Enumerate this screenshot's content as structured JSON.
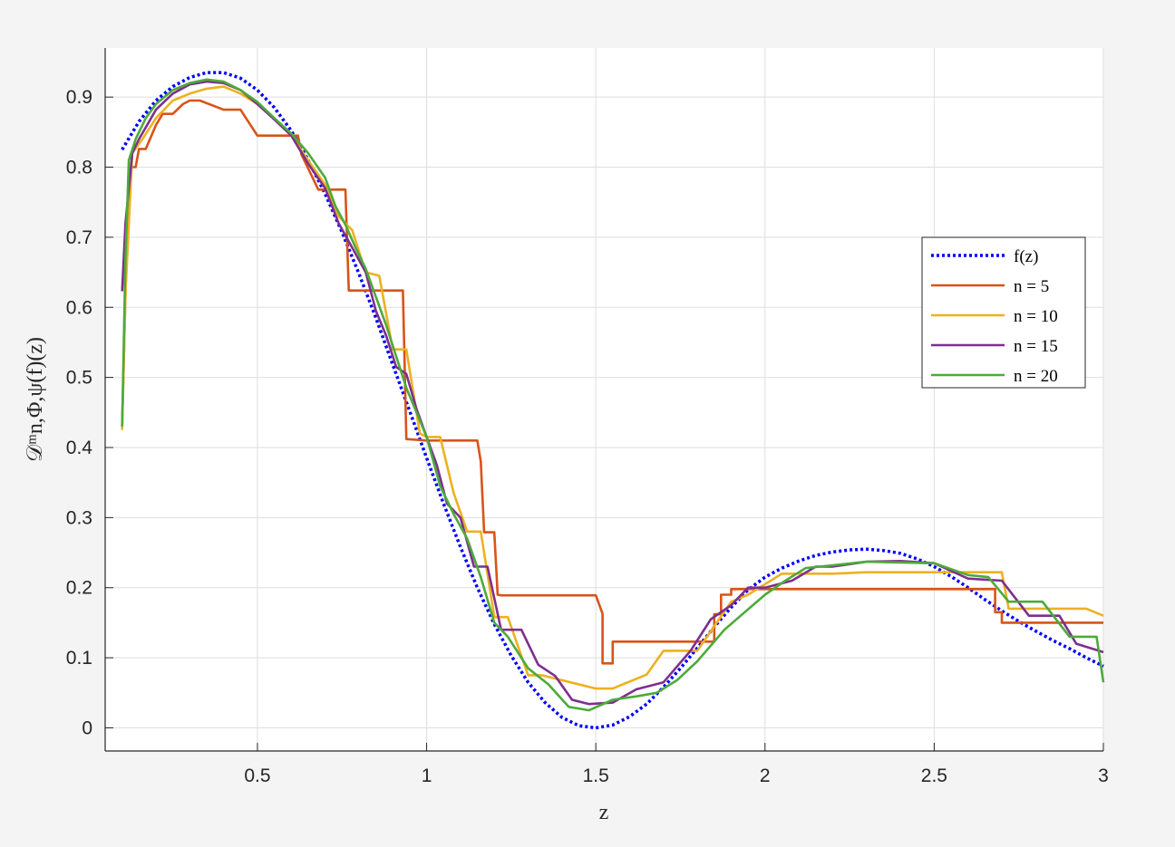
{
  "chart_data": {
    "type": "line",
    "title": "",
    "xlabel": "z",
    "ylabel": "𝒟ᵐn,Φ,ψ(f)(z)",
    "xlim": [
      0.05,
      3
    ],
    "ylim": [
      -0.033,
      0.97
    ],
    "grid": true,
    "legend_position": "right",
    "xticks": [
      0.5,
      1,
      1.5,
      2,
      2.5,
      3
    ],
    "xtick_labels": [
      "0.5",
      "1",
      "1.5",
      "2",
      "2.5",
      "3"
    ],
    "yticks": [
      0,
      0.1,
      0.2,
      0.3,
      0.4,
      0.5,
      0.6,
      0.7,
      0.8,
      0.9
    ],
    "ytick_labels": [
      "0",
      "0.1",
      "0.2",
      "0.3",
      "0.4",
      "0.5",
      "0.6",
      "0.7",
      "0.8",
      "0.9"
    ],
    "series": [
      {
        "name": "f(z)",
        "color": "#0000ff",
        "style": "dotted",
        "x": [
          0.1,
          0.15,
          0.2,
          0.25,
          0.3,
          0.35,
          0.4,
          0.45,
          0.5,
          0.55,
          0.6,
          0.65,
          0.7,
          0.75,
          0.8,
          0.85,
          0.9,
          0.95,
          1.0,
          1.05,
          1.1,
          1.15,
          1.2,
          1.25,
          1.3,
          1.35,
          1.4,
          1.45,
          1.5,
          1.55,
          1.6,
          1.65,
          1.7,
          1.75,
          1.8,
          1.85,
          1.9,
          1.95,
          2.0,
          2.05,
          2.1,
          2.15,
          2.2,
          2.25,
          2.3,
          2.35,
          2.4,
          2.45,
          2.5,
          2.55,
          2.6,
          2.65,
          2.7,
          2.75,
          2.8,
          2.85,
          2.9,
          2.95,
          3.0
        ],
        "y": [
          0.825,
          0.865,
          0.895,
          0.915,
          0.928,
          0.935,
          0.935,
          0.927,
          0.91,
          0.885,
          0.852,
          0.81,
          0.762,
          0.707,
          0.648,
          0.585,
          0.518,
          0.452,
          0.385,
          0.32,
          0.258,
          0.2,
          0.148,
          0.103,
          0.065,
          0.036,
          0.015,
          0.003,
          0.0,
          0.004,
          0.016,
          0.034,
          0.058,
          0.085,
          0.114,
          0.144,
          0.172,
          0.197,
          0.215,
          0.228,
          0.238,
          0.246,
          0.251,
          0.254,
          0.255,
          0.253,
          0.249,
          0.241,
          0.23,
          0.216,
          0.2,
          0.183,
          0.167,
          0.152,
          0.138,
          0.125,
          0.113,
          0.1,
          0.088
        ]
      },
      {
        "name": "n = 5",
        "color": "#d95319",
        "style": "solid",
        "x": [
          0.1,
          0.11,
          0.12,
          0.14,
          0.15,
          0.17,
          0.2,
          0.22,
          0.25,
          0.28,
          0.3,
          0.33,
          0.4,
          0.45,
          0.5,
          0.62,
          0.63,
          0.68,
          0.76,
          0.77,
          0.83,
          0.93,
          0.94,
          1.0,
          1.15,
          1.16,
          1.17,
          1.2,
          1.21,
          1.22,
          1.5,
          1.52,
          1.52,
          1.55,
          1.55,
          1.85,
          1.85,
          1.87,
          1.87,
          1.9,
          1.9,
          2.68,
          2.68,
          2.7,
          2.7,
          3.0
        ],
        "y": [
          0.43,
          0.62,
          0.8,
          0.8,
          0.826,
          0.826,
          0.86,
          0.876,
          0.876,
          0.89,
          0.895,
          0.895,
          0.882,
          0.882,
          0.845,
          0.845,
          0.818,
          0.768,
          0.768,
          0.624,
          0.624,
          0.624,
          0.412,
          0.41,
          0.41,
          0.38,
          0.279,
          0.279,
          0.19,
          0.189,
          0.189,
          0.163,
          0.092,
          0.092,
          0.123,
          0.123,
          0.162,
          0.162,
          0.19,
          0.19,
          0.198,
          0.198,
          0.165,
          0.165,
          0.15,
          0.15
        ]
      },
      {
        "name": "n = 10",
        "color": "#edb120",
        "style": "solid",
        "x": [
          0.1,
          0.11,
          0.13,
          0.16,
          0.2,
          0.25,
          0.3,
          0.35,
          0.4,
          0.45,
          0.5,
          0.55,
          0.6,
          0.65,
          0.7,
          0.74,
          0.78,
          0.82,
          0.86,
          0.9,
          0.94,
          0.98,
          1.0,
          1.04,
          1.08,
          1.12,
          1.16,
          1.2,
          1.24,
          1.3,
          1.34,
          1.5,
          1.55,
          1.65,
          1.7,
          1.8,
          1.85,
          1.9,
          1.95,
          2.05,
          2.1,
          2.2,
          2.3,
          2.45,
          2.7,
          2.72,
          2.95,
          3.0
        ],
        "y": [
          0.425,
          0.62,
          0.82,
          0.84,
          0.87,
          0.895,
          0.905,
          0.912,
          0.915,
          0.905,
          0.89,
          0.87,
          0.845,
          0.81,
          0.775,
          0.73,
          0.71,
          0.65,
          0.645,
          0.54,
          0.54,
          0.42,
          0.415,
          0.415,
          0.335,
          0.28,
          0.28,
          0.158,
          0.158,
          0.075,
          0.075,
          0.056,
          0.056,
          0.076,
          0.11,
          0.11,
          0.145,
          0.18,
          0.19,
          0.22,
          0.22,
          0.22,
          0.222,
          0.222,
          0.222,
          0.17,
          0.17,
          0.16
        ]
      },
      {
        "name": "n = 15",
        "color": "#7e2f8e",
        "style": "solid",
        "x": [
          0.1,
          0.11,
          0.13,
          0.15,
          0.18,
          0.2,
          0.25,
          0.3,
          0.35,
          0.4,
          0.45,
          0.5,
          0.55,
          0.6,
          0.65,
          0.7,
          0.74,
          0.78,
          0.82,
          0.85,
          0.88,
          0.91,
          0.94,
          0.97,
          1.0,
          1.03,
          1.06,
          1.1,
          1.14,
          1.18,
          1.22,
          1.28,
          1.33,
          1.38,
          1.43,
          1.48,
          1.55,
          1.62,
          1.7,
          1.78,
          1.84,
          1.9,
          1.95,
          2.0,
          2.08,
          2.15,
          2.2,
          2.3,
          2.4,
          2.5,
          2.6,
          2.7,
          2.78,
          2.87,
          2.92,
          3.0
        ],
        "y": [
          0.623,
          0.72,
          0.82,
          0.84,
          0.865,
          0.882,
          0.905,
          0.918,
          0.922,
          0.92,
          0.91,
          0.89,
          0.868,
          0.845,
          0.805,
          0.77,
          0.72,
          0.685,
          0.65,
          0.595,
          0.56,
          0.515,
          0.505,
          0.455,
          0.415,
          0.375,
          0.32,
          0.3,
          0.23,
          0.23,
          0.14,
          0.14,
          0.09,
          0.074,
          0.04,
          0.034,
          0.036,
          0.055,
          0.065,
          0.11,
          0.155,
          0.175,
          0.2,
          0.2,
          0.21,
          0.23,
          0.23,
          0.237,
          0.238,
          0.235,
          0.213,
          0.21,
          0.16,
          0.16,
          0.12,
          0.108
        ]
      },
      {
        "name": "n = 20",
        "color": "#4daa3b",
        "style": "solid",
        "x": [
          0.1,
          0.11,
          0.12,
          0.14,
          0.17,
          0.2,
          0.25,
          0.3,
          0.35,
          0.4,
          0.45,
          0.5,
          0.55,
          0.6,
          0.65,
          0.7,
          0.73,
          0.76,
          0.79,
          0.82,
          0.85,
          0.88,
          0.91,
          0.94,
          0.97,
          1.0,
          1.04,
          1.08,
          1.12,
          1.16,
          1.2,
          1.24,
          1.3,
          1.36,
          1.42,
          1.48,
          1.55,
          1.62,
          1.68,
          1.74,
          1.8,
          1.88,
          1.94,
          2.0,
          2.06,
          2.12,
          2.2,
          2.3,
          2.4,
          2.5,
          2.6,
          2.66,
          2.72,
          2.82,
          2.9,
          2.98,
          3.0
        ],
        "y": [
          0.43,
          0.67,
          0.81,
          0.84,
          0.87,
          0.89,
          0.91,
          0.92,
          0.925,
          0.922,
          0.91,
          0.893,
          0.87,
          0.848,
          0.82,
          0.785,
          0.745,
          0.718,
          0.685,
          0.655,
          0.615,
          0.575,
          0.53,
          0.485,
          0.45,
          0.415,
          0.345,
          0.305,
          0.27,
          0.215,
          0.15,
          0.13,
          0.085,
          0.062,
          0.03,
          0.025,
          0.04,
          0.045,
          0.05,
          0.068,
          0.095,
          0.14,
          0.165,
          0.19,
          0.21,
          0.228,
          0.232,
          0.237,
          0.236,
          0.235,
          0.218,
          0.215,
          0.18,
          0.18,
          0.13,
          0.13,
          0.065
        ]
      }
    ]
  }
}
